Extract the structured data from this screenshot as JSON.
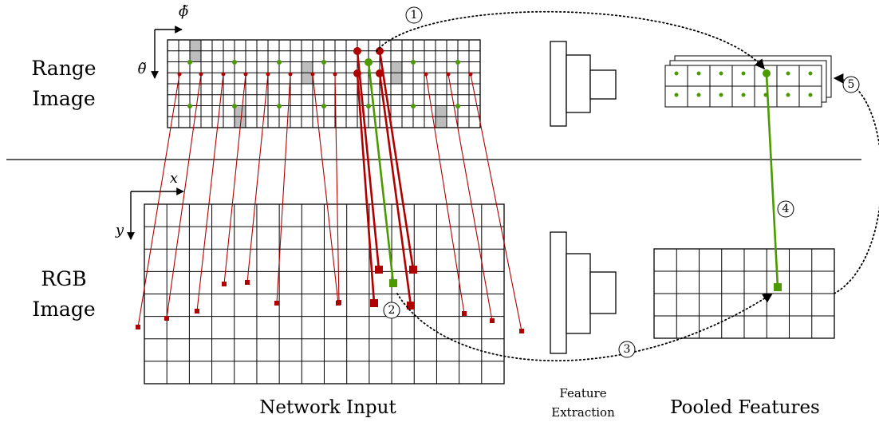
{
  "labels": {
    "range_image": [
      "Range",
      "Image"
    ],
    "rgb_image": [
      "RGB",
      "Image"
    ],
    "network_input": "Network Input",
    "feature_extraction": [
      "Feature",
      "Extraction"
    ],
    "pooled_features": "Pooled Features"
  },
  "axes": {
    "range_horizontal": "ϕ̃",
    "range_vertical": "θ̃",
    "rgb_horizontal": "x",
    "rgb_vertical": "y"
  },
  "steps": [
    "1",
    "2",
    "3",
    "4",
    "5"
  ],
  "colors": {
    "red": "#b00000",
    "green": "#4a9a00",
    "gray": "#bdbdbd",
    "black": "#000000"
  },
  "icons": {
    "coordinate_arrow": "arrow-head",
    "sample_point": "circle",
    "projected_point": "square"
  }
}
